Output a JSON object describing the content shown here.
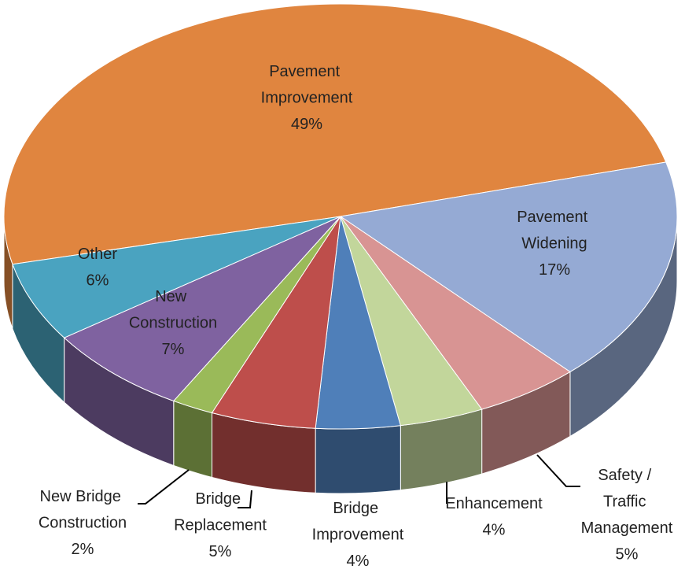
{
  "chart_data": {
    "type": "pie",
    "categories": [
      "Pavement Improvement",
      "Pavement Widening",
      "Safety / Traffic Management",
      "Enhancement",
      "Bridge Improvement",
      "Bridge Replacement",
      "New Bridge Construction",
      "New Construction",
      "Other"
    ],
    "values": [
      49,
      17,
      5,
      4,
      4,
      5,
      2,
      7,
      6
    ],
    "value_labels": [
      "49%",
      "17%",
      "5%",
      "4%",
      "4%",
      "5%",
      "2%",
      "7%",
      "6%"
    ],
    "colors": [
      "#e0853f",
      "#95aad4",
      "#d89493",
      "#c2d69b",
      "#4f7fb9",
      "#be4e4b",
      "#9aba59",
      "#7f62a0",
      "#4aa3c0"
    ]
  }
}
